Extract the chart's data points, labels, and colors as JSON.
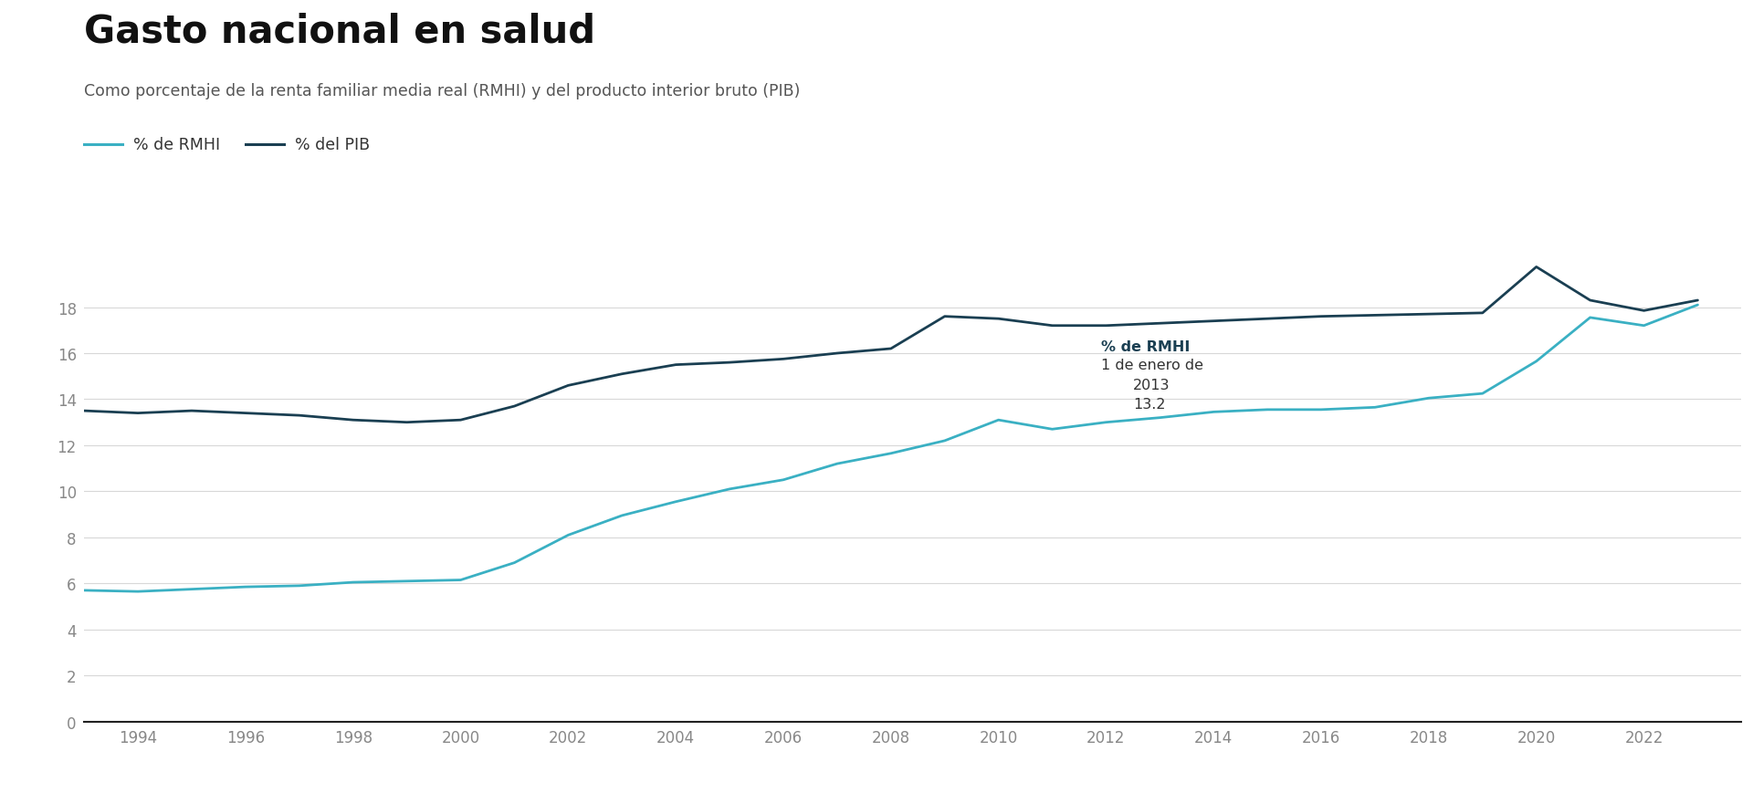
{
  "title": "Gasto nacional en salud",
  "subtitle": "Como porcentaje de la renta familiar media real (RMHI) y del producto interior bruto (PIB)",
  "legend_rmhi": "% de RMHI",
  "legend_pib": "% del PIB",
  "annotation_bold": "% de RMHI",
  "annotation_line2": "1 de enero de",
  "annotation_line3": "2013",
  "annotation_line4": "13.2",
  "years": [
    1993,
    1994,
    1995,
    1996,
    1997,
    1998,
    1999,
    2000,
    2001,
    2002,
    2003,
    2004,
    2005,
    2006,
    2007,
    2008,
    2009,
    2010,
    2011,
    2012,
    2013,
    2014,
    2015,
    2016,
    2017,
    2018,
    2019,
    2020,
    2021,
    2022,
    2023
  ],
  "rmhi": [
    5.7,
    5.65,
    5.75,
    5.85,
    5.9,
    6.05,
    6.1,
    6.15,
    6.9,
    8.1,
    8.95,
    9.55,
    10.1,
    10.5,
    11.2,
    11.65,
    12.2,
    13.1,
    12.7,
    13.0,
    13.2,
    13.45,
    13.55,
    13.55,
    13.65,
    14.05,
    14.25,
    15.65,
    17.55,
    17.2,
    18.1
  ],
  "pib": [
    13.5,
    13.4,
    13.5,
    13.4,
    13.3,
    13.1,
    13.0,
    13.1,
    13.7,
    14.6,
    15.1,
    15.5,
    15.6,
    15.75,
    16.0,
    16.2,
    17.6,
    17.5,
    17.2,
    17.2,
    17.3,
    17.4,
    17.5,
    17.6,
    17.65,
    17.7,
    17.75,
    19.75,
    18.3,
    17.85,
    18.3
  ],
  "color_rmhi": "#3ab0c3",
  "color_pib": "#1a3f52",
  "background_color": "#ffffff",
  "ylim": [
    0,
    20
  ],
  "yticks": [
    0,
    2,
    4,
    6,
    8,
    10,
    12,
    14,
    16,
    18
  ],
  "xtick_years": [
    1994,
    1996,
    1998,
    2000,
    2002,
    2004,
    2006,
    2008,
    2010,
    2012,
    2014,
    2016,
    2018,
    2020,
    2022
  ],
  "grid_color": "#d8d8d8",
  "ann_x": 2011.9,
  "ann_y_bold": 16.0,
  "ann_y_line2": 15.2,
  "ann_y_line3": 14.35,
  "ann_y_line4": 13.5
}
